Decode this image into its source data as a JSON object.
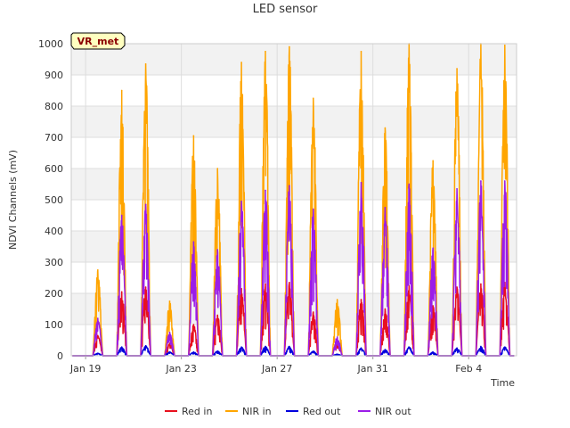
{
  "chart_data": {
    "type": "line",
    "title": "LED sensor",
    "xlabel": "Time",
    "ylabel": "NDVI Channels (mV)",
    "site_label": "VR_met",
    "xlim": [
      -0.6,
      18.0
    ],
    "ylim": [
      0,
      1000
    ],
    "yticks": [
      0,
      100,
      200,
      300,
      400,
      500,
      600,
      700,
      800,
      900,
      1000
    ],
    "xticks": [
      {
        "day": 0,
        "label": "Jan 19"
      },
      {
        "day": 4,
        "label": "Jan 23"
      },
      {
        "day": 8,
        "label": "Jan 27"
      },
      {
        "day": 12,
        "label": "Jan 31"
      },
      {
        "day": 16,
        "label": "Feb 4"
      }
    ],
    "days": [
      0,
      1,
      2,
      3,
      4,
      5,
      6,
      7,
      8,
      9,
      10,
      11,
      12,
      13,
      14,
      15,
      16,
      17
    ],
    "series": [
      {
        "name": "Red in",
        "color": "#e8101e",
        "peaks": [
          65,
          205,
          220,
          40,
          100,
          130,
          215,
          230,
          235,
          140,
          50,
          180,
          150,
          225,
          160,
          220,
          230,
          235
        ]
      },
      {
        "name": "NIR in",
        "color": "#ffa500",
        "peaks": [
          275,
          850,
          935,
          175,
          705,
          600,
          940,
          975,
          990,
          825,
          180,
          975,
          730,
          1000,
          625,
          920,
          1000,
          995
        ]
      },
      {
        "name": "Red out",
        "color": "#0000dd",
        "peaks": [
          8,
          28,
          32,
          12,
          12,
          15,
          28,
          30,
          30,
          15,
          5,
          25,
          20,
          28,
          12,
          25,
          30,
          28
        ]
      },
      {
        "name": "NIR out",
        "color": "#9b1de8",
        "peaks": [
          120,
          450,
          485,
          75,
          365,
          340,
          495,
          530,
          545,
          470,
          60,
          555,
          475,
          550,
          345,
          535,
          560,
          560
        ]
      }
    ]
  }
}
